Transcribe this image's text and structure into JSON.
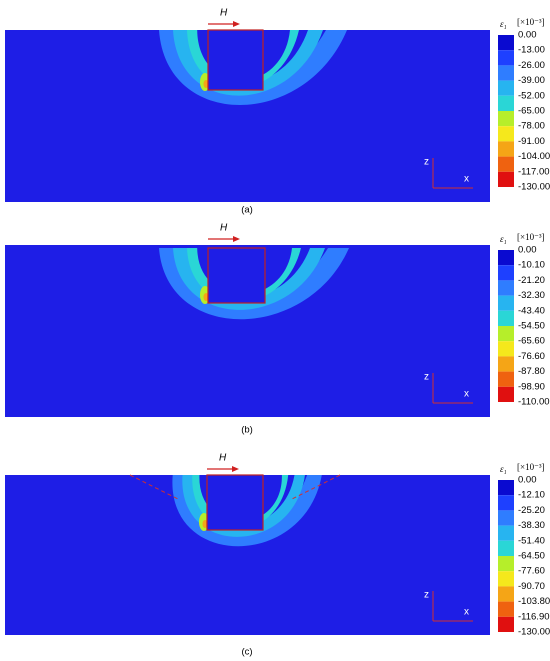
{
  "panels": [
    {
      "caption": "(a)",
      "force": "H",
      "unit": "[×10⁻³]",
      "symbol": "ε₁",
      "axis_z": "z",
      "axis_x": "x",
      "colorbar_labels": [
        "0.00",
        "-13.00",
        "-26.00",
        "-39.00",
        "-52.00",
        "-65.00",
        "-78.00",
        "-91.00",
        "-104.00",
        "-117.00",
        "-130.00"
      ]
    },
    {
      "caption": "(b)",
      "force": "H",
      "unit": "[×10⁻³]",
      "symbol": "ε₁",
      "axis_z": "z",
      "axis_x": "x",
      "colorbar_labels": [
        "0.00",
        "-10.10",
        "-21.20",
        "-32.30",
        "-43.40",
        "-54.50",
        "-65.60",
        "-76.60",
        "-87.80",
        "-98.90",
        "-110.00"
      ]
    },
    {
      "caption": "(c)",
      "force": "H",
      "unit": "[×10⁻³]",
      "symbol": "ε₁",
      "axis_z": "z",
      "axis_x": "x",
      "colorbar_labels": [
        "0.00",
        "-12.10",
        "-25.20",
        "-38.30",
        "-51.40",
        "-64.50",
        "-77.60",
        "-90.70",
        "-103.80",
        "-116.90",
        "-130.00"
      ]
    }
  ]
}
